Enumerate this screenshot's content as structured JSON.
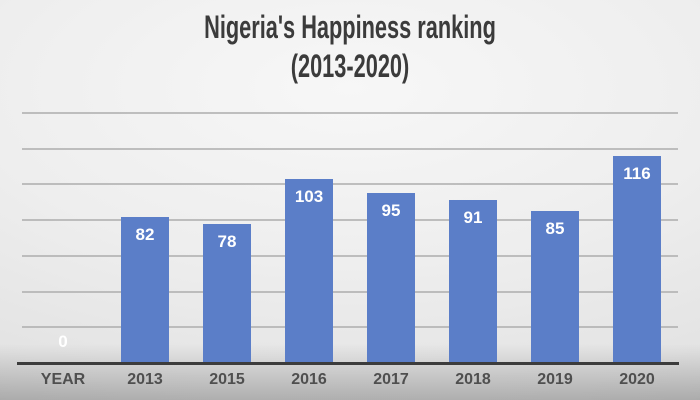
{
  "title": {
    "line1": "Nigeria's Happiness ranking",
    "line2": "(2013-2020)"
  },
  "chart_data": {
    "type": "bar",
    "title": "Nigeria's Happiness ranking (2013-2020)",
    "categories": [
      "YEAR",
      "2013",
      "2015",
      "2016",
      "2017",
      "2018",
      "2019",
      "2020"
    ],
    "values": [
      0,
      82,
      78,
      103,
      95,
      91,
      85,
      116
    ],
    "xlabel": "",
    "ylabel": "",
    "ylim": [
      0,
      140
    ],
    "grid_step": 20,
    "grid": true,
    "legend": false,
    "y_tick_labels_visible": false,
    "data_label_position": "inside-end"
  },
  "style": {
    "bar_color": "#5b7ec8",
    "bar_label_color": "#ffffff",
    "grid_color": "#b0b0b0",
    "axis_color": "#3c3c3c",
    "tick_color": "#4f4f4f",
    "title_color": "#3b3b3b"
  }
}
